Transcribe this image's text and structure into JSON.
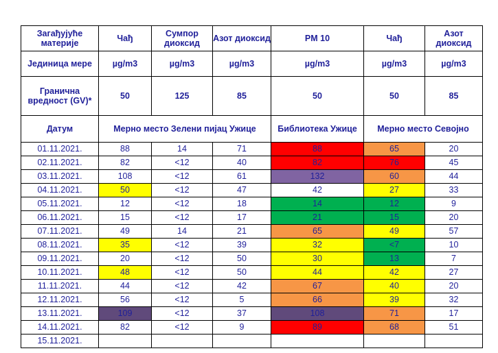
{
  "header": {
    "pollutant_label": "Загађујуће материје",
    "pollutants": [
      "Чађ",
      "Сумпор диоксид",
      "Азот диоксид",
      "PM 10",
      "Чађ",
      "Азот диоксид"
    ],
    "unit_label": "Јединица мере",
    "units": [
      "µg/m3",
      "µg/m3",
      "µg/m3",
      "µg/m3",
      "µg/m3",
      "µg/m3"
    ],
    "limit_label": "Гранична вредност (GV)*",
    "limits": [
      "50",
      "125",
      "85",
      "50",
      "50",
      "85"
    ],
    "date_label": "Датум",
    "station_zeleni": "Мерно место Зелени пијац Ужице",
    "station_biblioteka": "Библиотека Ужице",
    "station_sevojno": "Мерно место Севојно"
  },
  "rows": [
    {
      "date": "01.11.2021.",
      "v": [
        "88",
        "14",
        "71",
        "88",
        "65",
        "20"
      ],
      "c": [
        "none",
        "none",
        "none",
        "red",
        "orange",
        "none"
      ]
    },
    {
      "date": "02.11.2021.",
      "v": [
        "82",
        "<12",
        "40",
        "82",
        "76",
        "45"
      ],
      "c": [
        "none",
        "none",
        "none",
        "red",
        "red",
        "none"
      ]
    },
    {
      "date": "03.11.2021.",
      "v": [
        "108",
        "<12",
        "61",
        "132",
        "60",
        "44"
      ],
      "c": [
        "none",
        "none",
        "none",
        "purple",
        "orange",
        "none"
      ]
    },
    {
      "date": "04.11.2021.",
      "v": [
        "50",
        "<12",
        "47",
        "42",
        "27",
        "33"
      ],
      "c": [
        "yellow",
        "none",
        "none",
        "none",
        "yellow",
        "none"
      ]
    },
    {
      "date": "05.11.2021.",
      "v": [
        "12",
        "<12",
        "18",
        "14",
        "12",
        "9"
      ],
      "c": [
        "none",
        "none",
        "none",
        "green",
        "green",
        "none"
      ]
    },
    {
      "date": "06.11.2021.",
      "v": [
        "15",
        "<12",
        "17",
        "21",
        "15",
        "20"
      ],
      "c": [
        "none",
        "none",
        "none",
        "green",
        "green",
        "none"
      ]
    },
    {
      "date": "07.11.2021.",
      "v": [
        "49",
        "14",
        "21",
        "65",
        "49",
        "57"
      ],
      "c": [
        "none",
        "none",
        "none",
        "orange",
        "yellow",
        "none"
      ]
    },
    {
      "date": "08.11.2021.",
      "v": [
        "35",
        "<12",
        "39",
        "32",
        "<7",
        "10"
      ],
      "c": [
        "yellow",
        "none",
        "none",
        "yellow",
        "green",
        "none"
      ]
    },
    {
      "date": "09.11.2021.",
      "v": [
        "20",
        "<12",
        "50",
        "30",
        "13",
        "7"
      ],
      "c": [
        "none",
        "none",
        "none",
        "yellow",
        "green",
        "none"
      ]
    },
    {
      "date": "10.11.2021.",
      "v": [
        "48",
        "<12",
        "50",
        "44",
        "42",
        "27"
      ],
      "c": [
        "yellow",
        "none",
        "none",
        "yellow",
        "yellow",
        "none"
      ]
    },
    {
      "date": "11.11.2021.",
      "v": [
        "44",
        "<12",
        "42",
        "67",
        "40",
        "20"
      ],
      "c": [
        "none",
        "none",
        "none",
        "orange",
        "yellow",
        "none"
      ]
    },
    {
      "date": "12.11.2021.",
      "v": [
        "56",
        "<12",
        "5",
        "66",
        "39",
        "32"
      ],
      "c": [
        "none",
        "none",
        "none",
        "orange",
        "yellow",
        "none"
      ]
    },
    {
      "date": "13.11.2021.",
      "v": [
        "109",
        "<12",
        "37",
        "108",
        "71",
        "17"
      ],
      "c": [
        "darkpurple",
        "none",
        "none",
        "darkpurple",
        "orange",
        "none"
      ]
    },
    {
      "date": "14.11.2021.",
      "v": [
        "82",
        "<12",
        "9",
        "89",
        "68",
        "51"
      ],
      "c": [
        "none",
        "none",
        "none",
        "red",
        "orange",
        "none"
      ]
    },
    {
      "date": "15.11.2021.",
      "v": [
        "",
        "",
        "",
        "",
        "",
        ""
      ],
      "c": [
        "none",
        "none",
        "none",
        "none",
        "none",
        "none"
      ]
    }
  ]
}
